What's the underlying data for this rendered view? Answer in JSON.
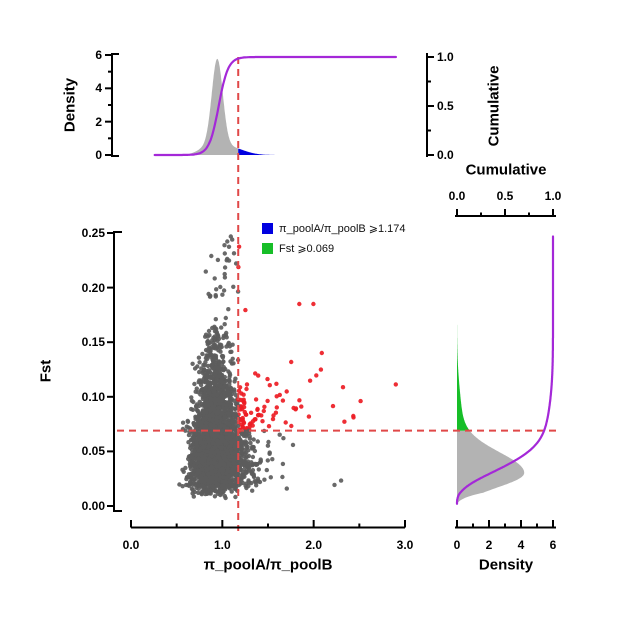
{
  "colors": {
    "point_gray": "#5C5C5C",
    "point_red": "#ED1C24",
    "density_gray": "#B3B3B3",
    "tail_blue": "#0000E0",
    "tail_green": "#17BE28",
    "cumulative_purple": "#A428D8",
    "dashed_red": "#E04848",
    "axis_black": "#000000"
  },
  "chart_data": {
    "type": "scatter",
    "description": "Scatter of Fst vs pi_poolA/pi_poolB with marginal density and cumulative curves; points with ratio >= 1.174 and Fst >= 0.069 highlighted red",
    "thresholds": {
      "x": 1.174,
      "y": 0.069
    },
    "main": {
      "xlabel": "π_poolA/π_poolB",
      "ylabel": "Fst",
      "xlim": [
        0,
        3
      ],
      "ylim": [
        0,
        0.25
      ],
      "xticks": {
        "values": [
          0,
          1,
          2,
          3
        ],
        "labels": [
          "0.0",
          "1.0",
          "2.0",
          "3.0"
        ],
        "minor": [
          0.5,
          1.5,
          2.5
        ]
      },
      "yticks": {
        "values": [
          0,
          0.05,
          0.1,
          0.15,
          0.2,
          0.25
        ],
        "labels": [
          "0.00",
          "0.05",
          "0.10",
          "0.15",
          "0.20",
          "0.25"
        ],
        "minor": []
      }
    },
    "top_marginal": {
      "ylabel": "Density",
      "ylim": [
        0,
        6
      ],
      "yticks": {
        "values": [
          0,
          2,
          4,
          6
        ],
        "labels": [
          "0",
          "2",
          "4",
          "6"
        ],
        "minor": [
          1,
          3,
          5
        ]
      },
      "cumulative": {
        "label": "Cumulative",
        "ticks": {
          "values": [
            0,
            0.5,
            1
          ],
          "labels": [
            "0.0",
            "0.5",
            "1.0"
          ],
          "minor": [
            0.25,
            0.75
          ]
        },
        "curve": {
          "mid": 0.96,
          "scale": 0.052,
          "x_start": 0.26,
          "x_end": 2.9
        }
      },
      "density_components": [
        {
          "w": 5.2,
          "m": 0.945,
          "s": 0.06
        },
        {
          "w": 0.5,
          "m": 1.06,
          "s": 0.16
        },
        {
          "w": 0.35,
          "m": 0.83,
          "s": 0.1
        }
      ],
      "density_range": [
        0.42,
        1.6
      ]
    },
    "right_marginal": {
      "xlabel": "Density",
      "xlim": [
        0,
        6
      ],
      "xticks": {
        "values": [
          0,
          2,
          4,
          6
        ],
        "labels": [
          "0",
          "2",
          "4",
          "6"
        ],
        "minor": [
          1,
          3,
          5
        ]
      },
      "cumulative": {
        "label": "Cumulative",
        "ticks": {
          "values": [
            0,
            0.5,
            1
          ],
          "labels": [
            "0.0",
            "0.5",
            "1.0"
          ],
          "minor": [
            0.25,
            0.75
          ]
        }
      },
      "density_components": [
        {
          "w": 4.1,
          "m": 0.03,
          "sl": 0.013,
          "sr": 0.019
        },
        {
          "w": 0.3,
          "m": 0.075,
          "sl": 0.03,
          "sr": 0.03
        }
      ],
      "density_range": [
        0.002,
        0.205
      ],
      "ramp": {
        "from": 0.002,
        "len": 0.01
      },
      "cumulative_range": [
        0.002,
        0.247
      ]
    },
    "legend": {
      "items": [
        {
          "color_key": "tail_blue",
          "label": "π_poolA/π_poolB ⩾1.174"
        },
        {
          "color_key": "tail_green",
          "label": "Fst ⩾0.069"
        }
      ]
    },
    "scatter_model": {
      "seed": 42,
      "n_core": 3200,
      "x_log_center": 0.93,
      "x_sigma_base": 0.185,
      "x_sigma_slope": 0.6,
      "x_sigma_min": 0.068,
      "y_offset": 0.006,
      "y_gamma_k": 3,
      "y_gamma_theta": 0.0185,
      "n_high": 22,
      "high_y_min": 0.18,
      "high_y_span": 0.07,
      "high_x_mean": 1.05,
      "high_x_sd": 0.09,
      "n_red_tail": 55,
      "red_x_start": 1.25,
      "red_x_exp": 0.38,
      "red_y_base": 0.072,
      "red_y_exp": 0.028,
      "n_right_low": 18,
      "low_x_start": 1.25,
      "low_x_exp": 0.3,
      "low_y_min": 0.015,
      "low_y_span": 0.05,
      "x_clip": [
        0.3,
        2.95
      ],
      "y_clip": [
        0.004,
        0.25
      ]
    }
  }
}
